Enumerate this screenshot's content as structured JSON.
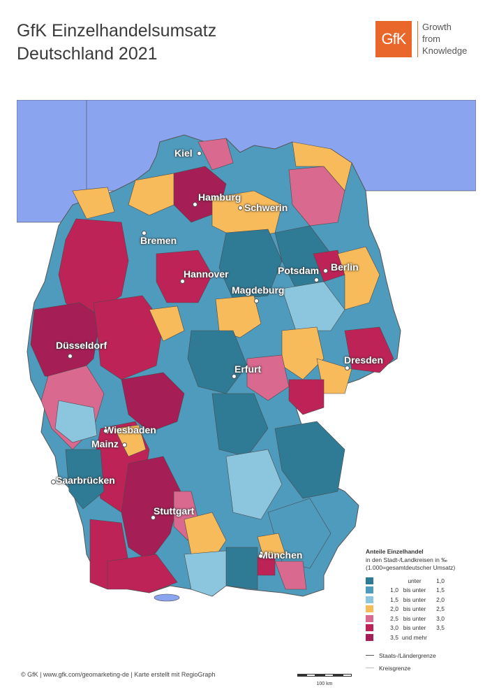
{
  "title": {
    "line1": "GfK Einzelhandelsumsatz",
    "line2": "Deutschland 2021"
  },
  "logo": {
    "mark": "GfK",
    "tagline1": "Growth",
    "tagline2": "from",
    "tagline3": "Knowledge"
  },
  "colors": {
    "sea": "#8ba4f0",
    "neighbor": "#ffffff",
    "c1": "#2f7a95",
    "c2": "#4f9bbd",
    "c3": "#8cc6de",
    "c4": "#f7bb5b",
    "c5": "#d9698f",
    "c6": "#bd2357",
    "c7": "#a51e55"
  },
  "legend": {
    "title": "Anteile Einzelhandel",
    "subtitle1": "in den Stadt-/Landkreisen in ‰",
    "subtitle2": "(1.000=gesamtdeutscher Umsatz)",
    "rows": [
      {
        "from": "",
        "mid": "unter",
        "to": "1,0"
      },
      {
        "from": "1,0",
        "mid": "bis unter",
        "to": "1,5"
      },
      {
        "from": "1,5",
        "mid": "bis unter",
        "to": "2,0"
      },
      {
        "from": "2,0",
        "mid": "bis unter",
        "to": "2,5"
      },
      {
        "from": "2,5",
        "mid": "bis unter",
        "to": "3,0"
      },
      {
        "from": "3,0",
        "mid": "bis unter",
        "to": "3,5"
      },
      {
        "from": "3,5",
        "mid": "und mehr",
        "to": ""
      }
    ],
    "line1": "Staats-/Ländergrenze",
    "line2": "Kreisgrenze"
  },
  "cities": [
    {
      "name": "Kiel"
    },
    {
      "name": "Hamburg"
    },
    {
      "name": "Schwerin"
    },
    {
      "name": "Bremen"
    },
    {
      "name": "Hannover"
    },
    {
      "name": "Potsdam"
    },
    {
      "name": "Berlin"
    },
    {
      "name": "Magdeburg"
    },
    {
      "name": "Düsseldorf"
    },
    {
      "name": "Erfurt"
    },
    {
      "name": "Dresden"
    },
    {
      "name": "Wiesbaden"
    },
    {
      "name": "Mainz"
    },
    {
      "name": "Saarbrücken"
    },
    {
      "name": "Stuttgart"
    },
    {
      "name": "München"
    }
  ],
  "credit": "© GfK | www.gfk.com/geomarketing-de | Karte erstellt mit RegioGraph",
  "scale": "100 km"
}
